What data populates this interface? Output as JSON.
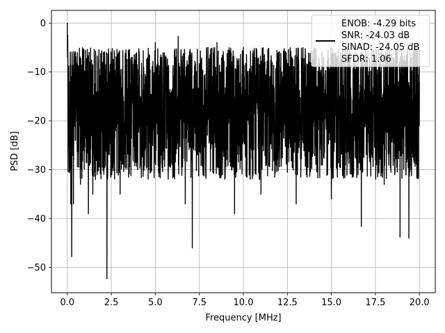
{
  "chart_data": {
    "type": "line",
    "title": "",
    "xlabel": "Frequency [MHz]",
    "ylabel": "PSD [dB]",
    "xlim": [
      -0.9,
      20.9
    ],
    "ylim": [
      -55.2,
      2.6
    ],
    "xticks": [
      0.0,
      2.5,
      5.0,
      7.5,
      10.0,
      12.5,
      15.0,
      17.5,
      20.0
    ],
    "xtick_labels": [
      "0.0",
      "2.5",
      "5.0",
      "7.5",
      "10.0",
      "12.5",
      "15.0",
      "17.5",
      "20.0"
    ],
    "yticks": [
      0,
      -10,
      -20,
      -30,
      -40,
      -50
    ],
    "ytick_labels": [
      "0",
      "−10",
      "−20",
      "−30",
      "−40",
      "−50"
    ],
    "grid": true,
    "legend_position": "top-right",
    "legend": {
      "lines": [
        "ENOB: -4.29 bits",
        "SNR: -24.03 dB",
        "SINAD: -24.05 dB",
        "SFDR: 1.06"
      ]
    },
    "series": [
      {
        "color": "#000000",
        "noise_band_db": {
          "upper_typical": -8,
          "lower_typical": -28,
          "median": -18
        },
        "x": [
          0.0,
          0.02,
          0.05,
          0.1,
          0.15,
          0.2,
          0.25,
          0.3,
          0.35,
          0.5,
          0.75,
          1.0,
          1.2,
          1.45,
          1.6,
          2.25,
          2.5,
          3.0,
          3.5,
          4.0,
          5.0,
          5.5,
          6.3,
          6.5,
          6.7,
          7.0,
          7.1,
          8.5,
          9.5,
          10.0,
          11.0,
          12.0,
          13.0,
          14.0,
          15.0,
          16.0,
          16.7,
          17.0,
          18.0,
          18.5,
          18.9,
          19.0,
          19.4,
          19.8,
          20.0
        ],
        "y": [
          0.0,
          -2.5,
          -26.0,
          -23.0,
          -12.0,
          -37.0,
          -47.8,
          -20.0,
          -37.0,
          -12.0,
          -33.0,
          -14.0,
          -39.0,
          -35.0,
          -32.0,
          -52.3,
          -8.0,
          -35.0,
          -6.0,
          -30.0,
          -4.0,
          -28.0,
          -2.7,
          -26.0,
          -37.0,
          -7.0,
          -46.0,
          -4.0,
          -39.0,
          -5.0,
          -35.0,
          -6.0,
          -37.0,
          -5.0,
          -36.0,
          -6.0,
          -41.6,
          -7.0,
          -33.0,
          -7.0,
          -43.8,
          -7.0,
          -44.0,
          -9.0,
          -12.0
        ]
      }
    ]
  }
}
